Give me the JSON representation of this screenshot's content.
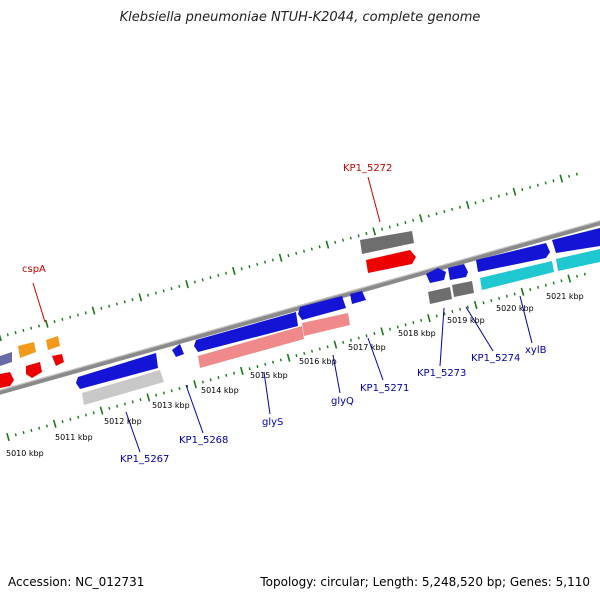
{
  "title": "Klebsiella pneumoniae NTUH-K2044, complete genome",
  "footer": {
    "accession": "Accession: NC_012731",
    "summary": "Topology: circular; Length: 5,248,520 bp; Genes: 5,110"
  },
  "colors": {
    "backbone": "#8a8a8a",
    "tick": "#1a7a1a",
    "gene_label_forward": "#cc0000",
    "gene_label_reverse": "#0000aa"
  },
  "scale_labels": [
    "5010 kbp",
    "5011 kbp",
    "5012 kbp",
    "5013 kbp",
    "5014 kbp",
    "5015 kbp",
    "5016 kbp",
    "5017 kbp",
    "5018 kbp",
    "5019 kbp",
    "5020 kbp",
    "5021 kbp"
  ],
  "gene_labels": {
    "cspA": "cspA",
    "KP1_5272": "KP1_5272",
    "KP1_5267": "KP1_5267",
    "KP1_5268": "KP1_5268",
    "glyS": "glyS",
    "glyQ": "glyQ",
    "KP1_5271": "KP1_5271",
    "KP1_5273": "KP1_5273",
    "KP1_5274": "KP1_5274",
    "xylB": "xylB"
  }
}
